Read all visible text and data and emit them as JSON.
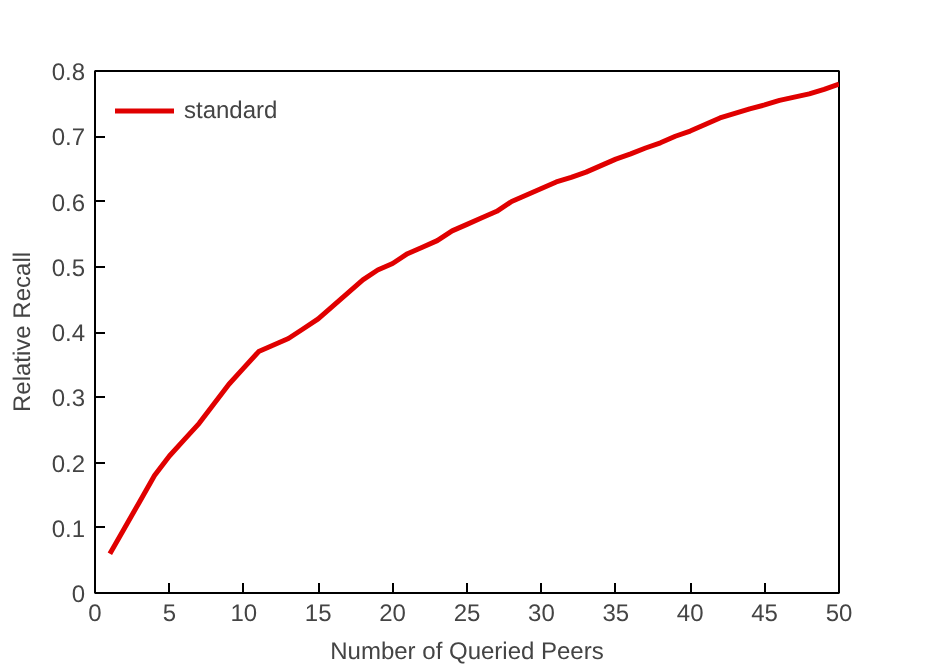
{
  "chart_data": {
    "type": "line",
    "xlabel": "Number of Queried Peers",
    "ylabel": "Relative Recall",
    "x": [
      1,
      2,
      3,
      4,
      5,
      6,
      7,
      8,
      9,
      10,
      11,
      12,
      13,
      14,
      15,
      16,
      17,
      18,
      19,
      20,
      21,
      22,
      23,
      24,
      25,
      26,
      27,
      28,
      29,
      30,
      31,
      32,
      33,
      34,
      35,
      36,
      37,
      38,
      39,
      40,
      41,
      42,
      43,
      44,
      45,
      46,
      47,
      48,
      49,
      50
    ],
    "series": [
      {
        "name": "standard",
        "color": "#e00000",
        "values": [
          0.06,
          0.1,
          0.14,
          0.18,
          0.21,
          0.235,
          0.26,
          0.29,
          0.32,
          0.345,
          0.37,
          0.38,
          0.39,
          0.405,
          0.42,
          0.44,
          0.46,
          0.48,
          0.495,
          0.505,
          0.52,
          0.53,
          0.54,
          0.555,
          0.565,
          0.575,
          0.585,
          0.6,
          0.61,
          0.62,
          0.63,
          0.637,
          0.645,
          0.655,
          0.665,
          0.673,
          0.682,
          0.69,
          0.7,
          0.708,
          0.718,
          0.728,
          0.735,
          0.742,
          0.748,
          0.755,
          0.76,
          0.765,
          0.772,
          0.78
        ]
      }
    ],
    "xlim": [
      0,
      50
    ],
    "ylim": [
      0,
      0.8
    ],
    "xticks": [
      0,
      5,
      10,
      15,
      20,
      25,
      30,
      35,
      40,
      45,
      50
    ],
    "yticks": [
      0,
      0.1,
      0.2,
      0.3,
      0.4,
      0.5,
      0.6,
      0.7,
      0.8
    ],
    "legend": "top left",
    "grid": false,
    "line_style": "solid"
  }
}
